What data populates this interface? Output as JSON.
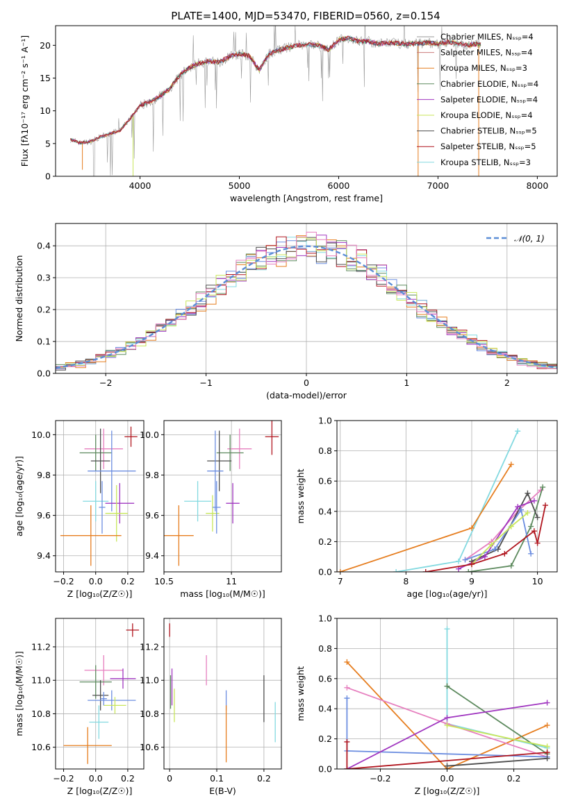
{
  "title": "PLATE=1400, MJD=53470, FIBERID=0560, z=0.154",
  "colors": {
    "cm": "#999999",
    "sm": "#cc7a7a",
    "km": "#e67d1e",
    "ce": "#5d8a5e",
    "se": "#a036c0",
    "ke": "#c8e65a",
    "cs": "#4d4d4d",
    "ss": "#b0141d",
    "ks": "#82d9e0",
    "fifth": "#6b8de0",
    "sixth": "#e67fbf",
    "gauss": "#5b8ed6",
    "grid": "#b0b0b0"
  },
  "chart_data": [
    {
      "id": "spectrum",
      "type": "line",
      "xlabel": "wavelength [Angstrom, rest frame]",
      "ylabel": "Flux [fλ10⁻¹⁷ erg cm⁻² s⁻¹ A⁻¹]",
      "xlim": [
        3150,
        8200
      ],
      "ylim": [
        0,
        23
      ],
      "xticks": [
        4000,
        5000,
        6000,
        7000,
        8000
      ],
      "yticks": [
        0,
        5,
        10,
        15,
        20
      ],
      "grid": false,
      "legend_position": "right",
      "x": [
        3300,
        3400,
        3500,
        3600,
        3700,
        3800,
        3900,
        4000,
        4100,
        4200,
        4300,
        4400,
        4500,
        4600,
        4700,
        4800,
        4900,
        5000,
        5100,
        5200,
        5300,
        5400,
        5500,
        5600,
        5700,
        5800,
        5900,
        6000,
        6100,
        6200,
        6300,
        6400,
        6500,
        6600,
        6700,
        6800,
        6900,
        7000,
        7100,
        7200,
        7300,
        7400
      ],
      "flux": [
        5.6,
        5.1,
        5.3,
        6.0,
        6.5,
        7.0,
        8.8,
        10.8,
        11.4,
        12.2,
        13.4,
        15.4,
        16.6,
        17.3,
        17.6,
        17.4,
        18.3,
        18.7,
        18.4,
        16.2,
        18.7,
        19.3,
        19.7,
        20.0,
        20.1,
        20.0,
        19.3,
        20.8,
        21.1,
        20.6,
        20.6,
        20.2,
        20.4,
        20.3,
        20.2,
        20.3,
        20.4,
        20.2,
        20.5,
        20.3,
        20.0,
        20.2
      ],
      "dips": [
        {
          "x": 3420,
          "y": 1.0,
          "series": 2
        },
        {
          "x": 3930,
          "y": 0.0,
          "series": 5
        },
        {
          "x": 6800,
          "y": 0.0,
          "series": 2
        },
        {
          "x": 7410,
          "y": 0.0,
          "series": 2
        }
      ],
      "series": [
        {
          "name": "Chabrier MILES, Nₛₛₚ=4",
          "color_key": "cm"
        },
        {
          "name": "Salpeter MILES, Nₛₛₚ=4",
          "color_key": "sm"
        },
        {
          "name": "Kroupa MILES, Nₛₛₚ=3",
          "color_key": "km"
        },
        {
          "name": "Chabrier ELODIE, Nₛₛₚ=4",
          "color_key": "ce"
        },
        {
          "name": "Salpeter ELODIE, Nₛₛₚ=4",
          "color_key": "se"
        },
        {
          "name": "Kroupa ELODIE, Nₛₛₚ=4",
          "color_key": "ke"
        },
        {
          "name": "Chabrier STELIB, Nₛₛₚ=5",
          "color_key": "cs"
        },
        {
          "name": "Salpeter STELIB, Nₛₛₚ=5",
          "color_key": "ss"
        },
        {
          "name": "Kroupa STELIB, Nₛₛₚ=3",
          "color_key": "ks"
        }
      ]
    },
    {
      "id": "residuals",
      "type": "histogram",
      "xlabel": "(data-model)/error",
      "ylabel": "Normed distribution",
      "xlim": [
        -2.5,
        2.5
      ],
      "ylim": [
        0,
        0.47
      ],
      "xticks": [
        -2,
        -1,
        0,
        1,
        2
      ],
      "xticklabels": [
        "−2",
        "−1",
        "0",
        "1",
        "2"
      ],
      "yticks": [
        0.0,
        0.1,
        0.2,
        0.3,
        0.4
      ],
      "grid": true,
      "legend": "𝒩(0, 1)",
      "legend_position": "top-right",
      "bin_width": 0.1
    },
    {
      "id": "age-vs-z",
      "type": "scatter",
      "xlabel": "Z [log₁₀(Z/Z☉)]",
      "ylabel": "age  [log₁₀(age/yr)]",
      "xlim": [
        -0.25,
        0.3
      ],
      "ylim": [
        9.32,
        10.07
      ],
      "xticks": [
        -0.2,
        0.0,
        0.2
      ],
      "xticklabels": [
        "−0.2",
        "0.0",
        "0.2"
      ],
      "yticks": [
        9.4,
        9.6,
        9.8,
        10.0
      ],
      "grid": true,
      "points": [
        {
          "x": 0.05,
          "y": 9.93,
          "xerr": 0.12,
          "yerr": 0.1,
          "c": "sixth"
        },
        {
          "x": 0.22,
          "y": 9.99,
          "xerr": 0.04,
          "yerr": 0.05,
          "c": "ss"
        },
        {
          "x": 0.0,
          "y": 9.91,
          "xerr": 0.1,
          "yerr": 0.09,
          "c": "ce"
        },
        {
          "x": 0.03,
          "y": 9.87,
          "xerr": 0.06,
          "yerr": 0.16,
          "c": "cs"
        },
        {
          "x": 0.1,
          "y": 9.82,
          "xerr": 0.15,
          "yerr": 0.2,
          "c": "fifth"
        },
        {
          "x": 0.0,
          "y": 9.67,
          "xerr": 0.08,
          "yerr": 0.1,
          "c": "ks"
        },
        {
          "x": 0.15,
          "y": 9.66,
          "xerr": 0.09,
          "yerr": 0.1,
          "c": "se"
        },
        {
          "x": 0.13,
          "y": 9.61,
          "xerr": 0.07,
          "yerr": 0.14,
          "c": "ke"
        },
        {
          "x": 0.04,
          "y": 9.64,
          "xerr": 0.02,
          "yerr": 0.13,
          "c": "fifth"
        },
        {
          "x": -0.03,
          "y": 9.5,
          "xerr": 0.19,
          "yerr": 0.15,
          "c": "km"
        }
      ]
    },
    {
      "id": "age-vs-mass",
      "type": "scatter",
      "xlabel": "mass [log₁₀(M/M☉)]",
      "ylabel": "",
      "xlim": [
        10.5,
        11.37
      ],
      "ylim": [
        9.32,
        10.07
      ],
      "xticks": [
        10.5,
        11.0
      ],
      "yticks": [
        9.4,
        9.6,
        9.8,
        10.0
      ],
      "grid": true,
      "points": [
        {
          "x": 11.06,
          "y": 9.93,
          "xerr": 0.09,
          "yerr": 0.1,
          "c": "sixth"
        },
        {
          "x": 11.3,
          "y": 9.99,
          "xerr": 0.05,
          "yerr": 0.09,
          "c": "ss"
        },
        {
          "x": 10.99,
          "y": 9.91,
          "xerr": 0.1,
          "yerr": 0.09,
          "c": "ce"
        },
        {
          "x": 10.91,
          "y": 9.87,
          "xerr": 0.09,
          "yerr": 0.15,
          "c": "cs"
        },
        {
          "x": 10.88,
          "y": 9.82,
          "xerr": 0.06,
          "yerr": 0.2,
          "c": "fifth"
        },
        {
          "x": 10.75,
          "y": 9.67,
          "xerr": 0.1,
          "yerr": 0.1,
          "c": "ks"
        },
        {
          "x": 11.01,
          "y": 9.66,
          "xerr": 0.05,
          "yerr": 0.1,
          "c": "se"
        },
        {
          "x": 10.86,
          "y": 9.61,
          "xerr": 0.05,
          "yerr": 0.09,
          "c": "ke"
        },
        {
          "x": 10.89,
          "y": 9.64,
          "xerr": 0.03,
          "yerr": 0.13,
          "c": "fifth"
        },
        {
          "x": 10.61,
          "y": 9.5,
          "xerr": 0.11,
          "yerr": 0.15,
          "c": "km"
        }
      ]
    },
    {
      "id": "weight-vs-age",
      "type": "line",
      "xlabel": "age  [log₁₀(age/yr)]",
      "ylabel": "mass weight",
      "xlim": [
        6.95,
        10.3
      ],
      "ylim": [
        0,
        1.0
      ],
      "xticks": [
        7,
        8,
        9,
        10
      ],
      "yticks": [
        0.0,
        0.2,
        0.4,
        0.6,
        0.8,
        1.0
      ],
      "grid": true,
      "series": [
        {
          "c": "ks",
          "x": [
            7.85,
            8.8,
            9.7
          ],
          "y": [
            0.0,
            0.07,
            0.93
          ]
        },
        {
          "c": "km",
          "x": [
            7.0,
            9.0,
            9.6
          ],
          "y": [
            0.0,
            0.29,
            0.71
          ]
        },
        {
          "c": "sixth",
          "x": [
            8.9,
            9.3,
            9.7,
            10.05
          ],
          "y": [
            0.08,
            0.2,
            0.4,
            0.54
          ]
        },
        {
          "c": "ce",
          "x": [
            8.95,
            9.6,
            9.9,
            10.08
          ],
          "y": [
            0.0,
            0.04,
            0.3,
            0.56
          ]
        },
        {
          "c": "cs",
          "x": [
            9.0,
            9.4,
            9.85,
            10.0
          ],
          "y": [
            0.07,
            0.15,
            0.52,
            0.36
          ]
        },
        {
          "c": "fifth",
          "x": [
            8.9,
            9.35,
            9.75,
            9.9
          ],
          "y": [
            0.08,
            0.15,
            0.41,
            0.12
          ]
        },
        {
          "c": "se",
          "x": [
            8.8,
            9.2,
            9.7,
            9.95
          ],
          "y": [
            0.02,
            0.1,
            0.43,
            0.47
          ]
        },
        {
          "c": "ke",
          "x": [
            9.0,
            9.3,
            9.6,
            9.85
          ],
          "y": [
            0.05,
            0.18,
            0.3,
            0.39
          ]
        },
        {
          "c": "ss",
          "x": [
            8.3,
            9.0,
            9.5,
            9.95,
            10.0,
            10.12
          ],
          "y": [
            0.0,
            0.05,
            0.12,
            0.27,
            0.19,
            0.44
          ]
        }
      ]
    },
    {
      "id": "mass-vs-z",
      "type": "scatter",
      "xlabel": "Z [log₁₀(Z/Z☉)]",
      "ylabel": "mass [log₁₀(M/M☉)]",
      "xlim": [
        -0.25,
        0.3
      ],
      "ylim": [
        10.47,
        11.37
      ],
      "xticks": [
        -0.2,
        0.0,
        0.2
      ],
      "xticklabels": [
        "−0.2",
        "0.0",
        "0.2"
      ],
      "yticks": [
        10.6,
        10.8,
        11.0,
        11.2
      ],
      "grid": true,
      "points": [
        {
          "x": 0.23,
          "y": 11.3,
          "xerr": 0.04,
          "yerr": 0.04,
          "c": "ss"
        },
        {
          "x": 0.05,
          "y": 11.06,
          "xerr": 0.12,
          "yerr": 0.09,
          "c": "sixth"
        },
        {
          "x": 0.17,
          "y": 11.01,
          "xerr": 0.08,
          "yerr": 0.06,
          "c": "se"
        },
        {
          "x": 0.0,
          "y": 10.99,
          "xerr": 0.1,
          "yerr": 0.1,
          "c": "ce"
        },
        {
          "x": 0.03,
          "y": 10.91,
          "xerr": 0.05,
          "yerr": 0.09,
          "c": "cs"
        },
        {
          "x": 0.1,
          "y": 10.88,
          "xerr": 0.15,
          "yerr": 0.06,
          "c": "fifth"
        },
        {
          "x": 0.12,
          "y": 10.85,
          "xerr": 0.07,
          "yerr": 0.05,
          "c": "ke"
        },
        {
          "x": 0.02,
          "y": 10.75,
          "xerr": 0.06,
          "yerr": 0.1,
          "c": "ks"
        },
        {
          "x": 0.05,
          "y": 10.89,
          "xerr": 0.02,
          "yerr": 0.04,
          "c": "fifth"
        },
        {
          "x": -0.05,
          "y": 10.61,
          "xerr": 0.15,
          "yerr": 0.11,
          "c": "km"
        }
      ]
    },
    {
      "id": "mass-vs-ebv",
      "type": "scatter",
      "xlabel": "E(B-V)",
      "ylabel": "",
      "xlim": [
        -0.012,
        0.237
      ],
      "ylim": [
        10.47,
        11.37
      ],
      "xticks": [
        0.0,
        0.1,
        0.2
      ],
      "yticks": [
        10.6,
        10.8,
        11.0,
        11.2
      ],
      "grid": true,
      "points": [
        {
          "x": 0.0,
          "y": 11.3,
          "xerr": 0,
          "yerr": 0.04,
          "c": "ss"
        },
        {
          "x": 0.005,
          "y": 10.96,
          "xerr": 0,
          "yerr": 0.11,
          "c": "se"
        },
        {
          "x": 0.002,
          "y": 10.93,
          "xerr": 0,
          "yerr": 0.1,
          "c": "ce"
        },
        {
          "x": 0.01,
          "y": 10.85,
          "xerr": 0,
          "yerr": 0.1,
          "c": "ke"
        },
        {
          "x": 0.078,
          "y": 11.06,
          "xerr": 0,
          "yerr": 0.09,
          "c": "sixth"
        },
        {
          "x": 0.12,
          "y": 10.88,
          "xerr": 0,
          "yerr": 0.06,
          "c": "fifth"
        },
        {
          "x": 0.12,
          "y": 10.68,
          "xerr": 0,
          "yerr": 0.17,
          "c": "km"
        },
        {
          "x": 0.2,
          "y": 10.89,
          "xerr": 0,
          "yerr": 0.14,
          "c": "cs"
        },
        {
          "x": 0.224,
          "y": 10.75,
          "xerr": 0,
          "yerr": 0.12,
          "c": "ks"
        }
      ]
    },
    {
      "id": "weight-vs-z",
      "type": "line",
      "xlabel": "Z [log₁₀(Z/Z☉)]",
      "ylabel": "mass weight",
      "xlim": [
        -0.33,
        0.33
      ],
      "ylim": [
        0,
        1.0
      ],
      "xticks": [
        -0.2,
        0.0,
        0.2
      ],
      "xticklabels": [
        "−0.2",
        "0.0",
        "0.2"
      ],
      "yticks": [
        0.0,
        0.2,
        0.4,
        0.6,
        0.8,
        1.0
      ],
      "grid": true,
      "series": [
        {
          "c": "ks",
          "x": [
            0.0,
            0.0,
            0.3
          ],
          "y": [
            0.93,
            0.3,
            0.14
          ]
        },
        {
          "c": "km",
          "x": [
            -0.3,
            0.0,
            0.3
          ],
          "y": [
            0.71,
            0.0,
            0.29
          ]
        },
        {
          "c": "sixth",
          "x": [
            -0.3,
            0.0,
            0.3
          ],
          "y": [
            0.54,
            0.3,
            0.08
          ]
        },
        {
          "c": "ce",
          "x": [
            0.0,
            0.0,
            0.3
          ],
          "y": [
            0.55,
            0.55,
            0.1
          ]
        },
        {
          "c": "fifth",
          "x": [
            -0.3,
            -0.3,
            0.3
          ],
          "y": [
            0.47,
            0.12,
            0.08
          ]
        },
        {
          "c": "se",
          "x": [
            -0.3,
            0.0,
            0.3
          ],
          "y": [
            0.0,
            0.34,
            0.44
          ]
        },
        {
          "c": "ke",
          "x": [
            0.0,
            0.3
          ],
          "y": [
            0.29,
            0.15
          ]
        },
        {
          "c": "cs",
          "x": [
            0.0,
            0.3
          ],
          "y": [
            0.02,
            0.07
          ]
        },
        {
          "c": "ss",
          "x": [
            -0.3,
            -0.3,
            0.3
          ],
          "y": [
            0.18,
            0.0,
            0.11
          ]
        }
      ]
    }
  ]
}
